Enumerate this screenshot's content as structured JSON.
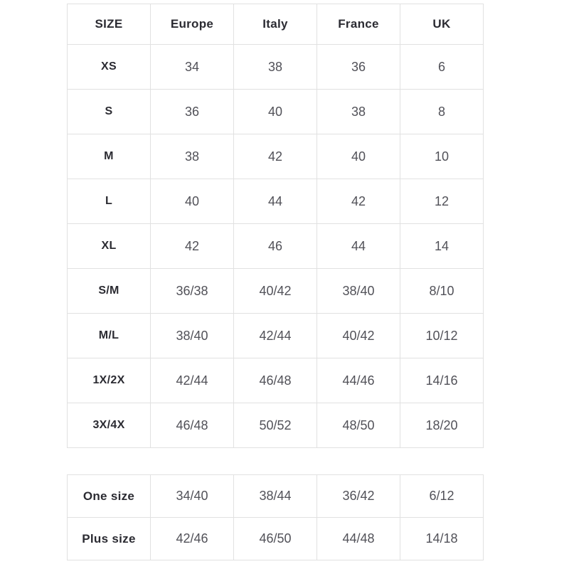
{
  "colors": {
    "border": "#e1e1e1",
    "header_text": "#2b2b32",
    "value_text": "#515158",
    "background": "#ffffff"
  },
  "table_main": {
    "columns": [
      "SIZE",
      "Europe",
      "Italy",
      "France",
      "UK"
    ],
    "rows": [
      {
        "size": "XS",
        "values": [
          "34",
          "38",
          "36",
          "6"
        ]
      },
      {
        "size": "S",
        "values": [
          "36",
          "40",
          "38",
          "8"
        ]
      },
      {
        "size": "M",
        "values": [
          "38",
          "42",
          "40",
          "10"
        ]
      },
      {
        "size": "L",
        "values": [
          "40",
          "44",
          "42",
          "12"
        ]
      },
      {
        "size": "XL",
        "values": [
          "42",
          "46",
          "44",
          "14"
        ]
      },
      {
        "size": "S/M",
        "values": [
          "36/38",
          "40/42",
          "38/40",
          "8/10"
        ]
      },
      {
        "size": "M/L",
        "values": [
          "38/40",
          "42/44",
          "40/42",
          "10/12"
        ]
      },
      {
        "size": "1X/2X",
        "values": [
          "42/44",
          "46/48",
          "44/46",
          "14/16"
        ]
      },
      {
        "size": "3X/4X",
        "values": [
          "46/48",
          "50/52",
          "48/50",
          "18/20"
        ]
      }
    ]
  },
  "table_extra": {
    "rows": [
      {
        "size": "One size",
        "values": [
          "34/40",
          "38/44",
          "36/42",
          "6/12"
        ]
      },
      {
        "size": "Plus size",
        "values": [
          "42/46",
          "46/50",
          "44/48",
          "14/18"
        ]
      }
    ]
  }
}
